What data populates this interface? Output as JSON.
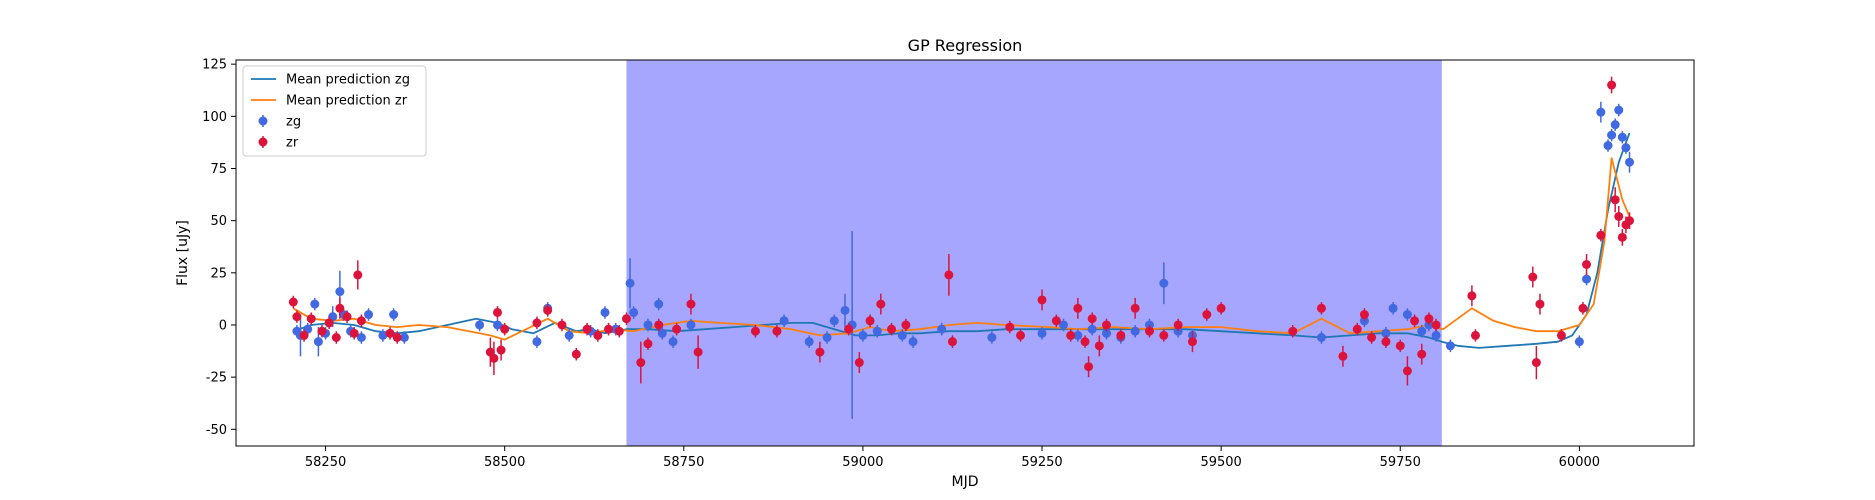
{
  "chart_data": {
    "type": "scatter",
    "title": "GP Regression",
    "xlabel": "MJD",
    "ylabel": "Flux [uJy]",
    "xlim": [
      58125,
      60160
    ],
    "ylim": [
      -58,
      127
    ],
    "xticks": [
      58250,
      58500,
      58750,
      59000,
      59250,
      59500,
      59750,
      60000
    ],
    "yticks": [
      -50,
      -25,
      0,
      25,
      50,
      75,
      100,
      125
    ],
    "grid": false,
    "legend_position": "top-left",
    "shaded_region": {
      "x": [
        58670,
        59808
      ],
      "color": "#a6a6ff"
    },
    "legend": [
      "Mean prediction zg",
      "Mean prediction zr",
      "zg",
      "zr"
    ],
    "series": [
      {
        "name": "Mean prediction zg",
        "kind": "line",
        "color": "#1f77b4",
        "x": [
          58205,
          58230,
          58260,
          58290,
          58320,
          58350,
          58380,
          58420,
          58460,
          58490,
          58510,
          58540,
          58570,
          58600,
          58620,
          58640,
          58670,
          58700,
          58740,
          58780,
          58820,
          58860,
          58900,
          58930,
          58960,
          58990,
          59020,
          59050,
          59080,
          59120,
          59160,
          59200,
          59260,
          59300,
          59350,
          59400,
          59450,
          59500,
          59550,
          59600,
          59640,
          59680,
          59720,
          59760,
          59790,
          59808,
          59830,
          59860,
          59900,
          59940,
          59970,
          59990,
          60010,
          60025,
          60040,
          60055,
          60070
        ],
        "y": [
          -3,
          0,
          1,
          0,
          -3,
          -4,
          -3,
          0,
          3,
          1,
          -2,
          -4,
          1,
          -3,
          -2,
          -4,
          -2,
          -2,
          -3,
          -2,
          -1,
          0,
          1,
          1,
          -2,
          -5,
          -5,
          -4,
          -4,
          -3,
          -3,
          -2,
          -2,
          -2,
          -2,
          -2,
          -2,
          -3,
          -4,
          -5,
          -6,
          -5,
          -4,
          -4,
          -6,
          -8,
          -10,
          -11,
          -10,
          -9,
          -8,
          -5,
          5,
          25,
          55,
          78,
          92
        ]
      },
      {
        "name": "Mean prediction zr",
        "kind": "line",
        "color": "#ff7f0e",
        "x": [
          58205,
          58230,
          58260,
          58290,
          58320,
          58350,
          58380,
          58420,
          58450,
          58480,
          58500,
          58530,
          58560,
          58590,
          58620,
          58650,
          58680,
          58720,
          58760,
          58800,
          58850,
          58900,
          58940,
          58980,
          59010,
          59040,
          59080,
          59120,
          59160,
          59200,
          59260,
          59300,
          59350,
          59400,
          59450,
          59500,
          59550,
          59600,
          59640,
          59680,
          59720,
          59760,
          59790,
          59810,
          59830,
          59850,
          59880,
          59910,
          59940,
          59970,
          60000,
          60020,
          60035,
          60045,
          60060,
          60070
        ],
        "y": [
          8,
          3,
          2,
          3,
          0,
          -1,
          0,
          -1,
          -3,
          -5,
          -7,
          -2,
          3,
          -3,
          -4,
          -2,
          -3,
          0,
          2,
          1,
          0,
          -2,
          -5,
          -4,
          -1,
          -3,
          -2,
          0,
          1,
          0,
          -1,
          -2,
          -1,
          -2,
          -1,
          -1,
          -3,
          -4,
          3,
          -4,
          -3,
          -2,
          0,
          -2,
          3,
          8,
          2,
          -1,
          -3,
          -3,
          0,
          10,
          40,
          80,
          60,
          52
        ]
      },
      {
        "name": "zg",
        "kind": "errorbar",
        "color": "#4169e1",
        "x": [
          58210,
          58215,
          58225,
          58235,
          58240,
          58250,
          58260,
          58270,
          58275,
          58285,
          58300,
          58310,
          58330,
          58345,
          58360,
          58465,
          58490,
          58545,
          58560,
          58590,
          58620,
          58640,
          58655,
          58675,
          58680,
          58700,
          58715,
          58720,
          58735,
          58760,
          58890,
          58925,
          58950,
          58960,
          58975,
          58985,
          59000,
          59020,
          59055,
          59070,
          59110,
          59180,
          59250,
          59280,
          59300,
          59320,
          59340,
          59360,
          59380,
          59400,
          59420,
          59440,
          59460,
          59640,
          59700,
          59730,
          59740,
          59760,
          59780,
          59790,
          59800,
          59820,
          60000,
          60010,
          60030,
          60040,
          60045,
          60050,
          60055,
          60060,
          60065,
          60070
        ],
        "y": [
          -3,
          -5,
          -2,
          10,
          -8,
          -4,
          4,
          16,
          5,
          -3,
          -6,
          5,
          -5,
          5,
          -6,
          0,
          0,
          -8,
          8,
          -5,
          -3,
          6,
          -2,
          20,
          6,
          0,
          10,
          -4,
          -8,
          0,
          2,
          -8,
          -6,
          2,
          7,
          0,
          -5,
          -3,
          -5,
          -8,
          -2,
          -6,
          -4,
          0,
          -5,
          -2,
          -4,
          -6,
          -3,
          0,
          20,
          -3,
          -5,
          -6,
          2,
          -4,
          8,
          5,
          -3,
          0,
          -5,
          -10,
          -8,
          22,
          102,
          86,
          91,
          96,
          103,
          90,
          85,
          78
        ],
        "err": [
          3,
          10,
          3,
          3,
          7,
          3,
          5,
          10,
          3,
          3,
          3,
          3,
          3,
          3,
          3,
          3,
          3,
          3,
          3,
          3,
          3,
          3,
          3,
          12,
          3,
          3,
          3,
          3,
          3,
          3,
          3,
          3,
          3,
          3,
          8,
          45,
          3,
          3,
          3,
          3,
          3,
          3,
          3,
          3,
          3,
          3,
          3,
          3,
          3,
          3,
          10,
          3,
          3,
          3,
          3,
          3,
          3,
          3,
          3,
          3,
          3,
          3,
          3,
          3,
          5,
          3,
          3,
          3,
          3,
          3,
          3,
          5
        ]
      },
      {
        "name": "zr",
        "kind": "errorbar",
        "color": "#dc143c",
        "x": [
          58205,
          58210,
          58220,
          58230,
          58245,
          58255,
          58265,
          58270,
          58280,
          58290,
          58295,
          58300,
          58340,
          58350,
          58480,
          58485,
          58490,
          58495,
          58500,
          58545,
          58560,
          58580,
          58600,
          58615,
          58630,
          58645,
          58660,
          58670,
          58690,
          58700,
          58715,
          58740,
          58760,
          58770,
          58850,
          58880,
          58940,
          58980,
          58995,
          59010,
          59025,
          59040,
          59060,
          59120,
          59125,
          59205,
          59220,
          59250,
          59270,
          59290,
          59300,
          59310,
          59315,
          59320,
          59330,
          59340,
          59360,
          59380,
          59400,
          59420,
          59440,
          59460,
          59480,
          59500,
          59600,
          59640,
          59670,
          59690,
          59700,
          59710,
          59730,
          59750,
          59760,
          59770,
          59780,
          59790,
          59800,
          59850,
          59855,
          59935,
          59940,
          59945,
          59975,
          60005,
          60010,
          60030,
          60045,
          60050,
          60055,
          60060,
          60065,
          60070
        ],
        "y": [
          11,
          4,
          -5,
          3,
          -3,
          1,
          -6,
          8,
          4,
          -4,
          24,
          2,
          -4,
          -6,
          -13,
          -16,
          6,
          -12,
          -2,
          1,
          7,
          0,
          -14,
          -2,
          -5,
          -2,
          -3,
          3,
          -18,
          -9,
          0,
          -2,
          10,
          -13,
          -3,
          -3,
          -13,
          -2,
          -18,
          2,
          10,
          -2,
          0,
          24,
          -8,
          -1,
          -5,
          12,
          2,
          -5,
          8,
          -8,
          -20,
          3,
          -10,
          0,
          -5,
          8,
          -3,
          -5,
          0,
          -8,
          5,
          8,
          -3,
          8,
          -15,
          -2,
          5,
          -6,
          -8,
          -10,
          -22,
          2,
          -14,
          3,
          0,
          14,
          -5,
          23,
          -18,
          10,
          -5,
          8,
          29,
          43,
          115,
          60,
          52,
          42,
          48,
          50
        ],
        "err": [
          3,
          3,
          3,
          3,
          3,
          3,
          3,
          5,
          3,
          3,
          7,
          3,
          3,
          3,
          7,
          8,
          3,
          5,
          3,
          3,
          3,
          3,
          3,
          3,
          3,
          3,
          3,
          3,
          10,
          3,
          3,
          3,
          5,
          8,
          3,
          3,
          5,
          3,
          5,
          3,
          5,
          3,
          3,
          10,
          3,
          3,
          3,
          5,
          3,
          3,
          5,
          3,
          5,
          3,
          5,
          3,
          3,
          5,
          3,
          3,
          3,
          5,
          3,
          3,
          3,
          3,
          5,
          3,
          3,
          3,
          3,
          3,
          7,
          3,
          5,
          3,
          3,
          5,
          3,
          5,
          8,
          5,
          3,
          3,
          5,
          3,
          4,
          6,
          5,
          4,
          4,
          4
        ]
      }
    ]
  }
}
